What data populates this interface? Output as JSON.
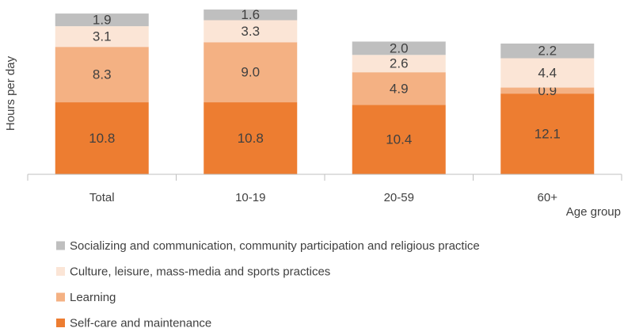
{
  "chart_data": {
    "type": "stacked_bar",
    "y_label": "Hours per day",
    "x_label": "Age group",
    "categories": [
      "Total",
      "10-19",
      "20-59",
      "60+"
    ],
    "series": [
      {
        "name": "Self-care and maintenance",
        "color": "#ed7d31",
        "values": [
          10.8,
          10.8,
          10.4,
          12.1
        ]
      },
      {
        "name": "Learning",
        "color": "#f4b183",
        "values": [
          8.3,
          9.0,
          4.9,
          0.9
        ],
        "value_labels": [
          "8.3",
          "9.0",
          "4.9",
          "0.9"
        ]
      },
      {
        "name": "Culture, leisure, mass-media and sports practices",
        "color": "#fbe5d6",
        "values": [
          3.1,
          3.3,
          2.6,
          4.4
        ]
      },
      {
        "name": "Socializing and communication, community participation and religious practice",
        "color": "#bfbfbf",
        "values": [
          1.9,
          1.6,
          2.0,
          2.2
        ],
        "value_labels": [
          "1.9",
          "1.6",
          "2.0",
          "2.2"
        ]
      }
    ],
    "ylim": [
      0,
      25
    ],
    "legend": "bottom"
  }
}
